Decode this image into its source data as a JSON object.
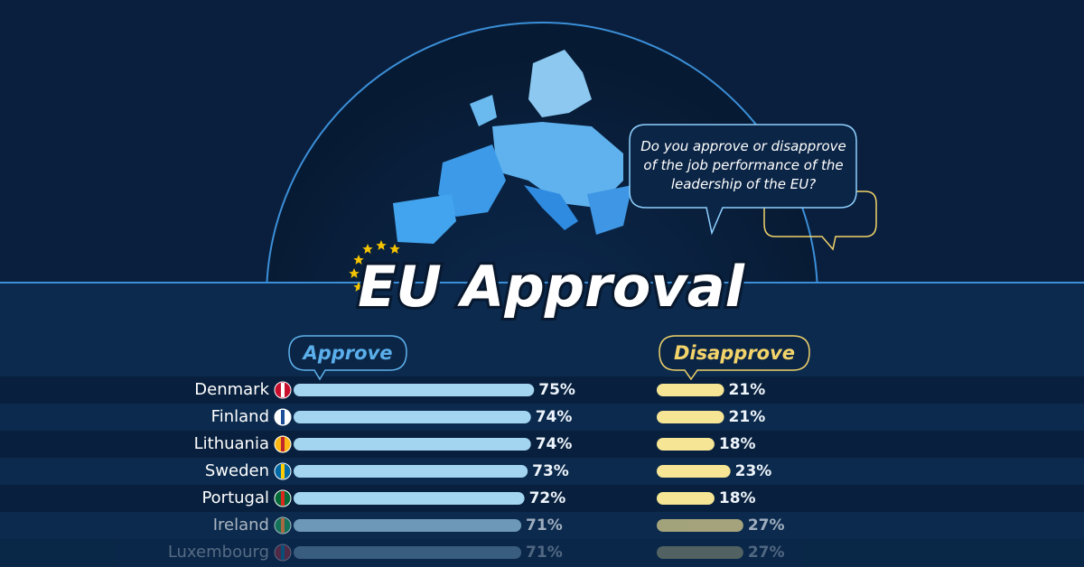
{
  "chart_data": {
    "type": "bar",
    "title": "EU Approval",
    "annotation": "Do you approve or disapprove of the job performance of the leadership of the EU?",
    "categories": [
      "Denmark",
      "Finland",
      "Lithuania",
      "Sweden",
      "Portugal",
      "Ireland",
      "Luxembourg"
    ],
    "series": [
      {
        "name": "Approve",
        "color": "#a3d4f0",
        "values": [
          75,
          74,
          74,
          73,
          72,
          71,
          71
        ],
        "value_labels": [
          "75%",
          "74%",
          "74%",
          "73%",
          "72%",
          "71%",
          "71%"
        ]
      },
      {
        "name": "Disapprove",
        "color": "#f6e594",
        "values": [
          21,
          21,
          18,
          23,
          18,
          27,
          27
        ],
        "value_labels": [
          "21%",
          "21%",
          "18%",
          "23%",
          "18%",
          "27%",
          "27%"
        ]
      }
    ]
  }
}
